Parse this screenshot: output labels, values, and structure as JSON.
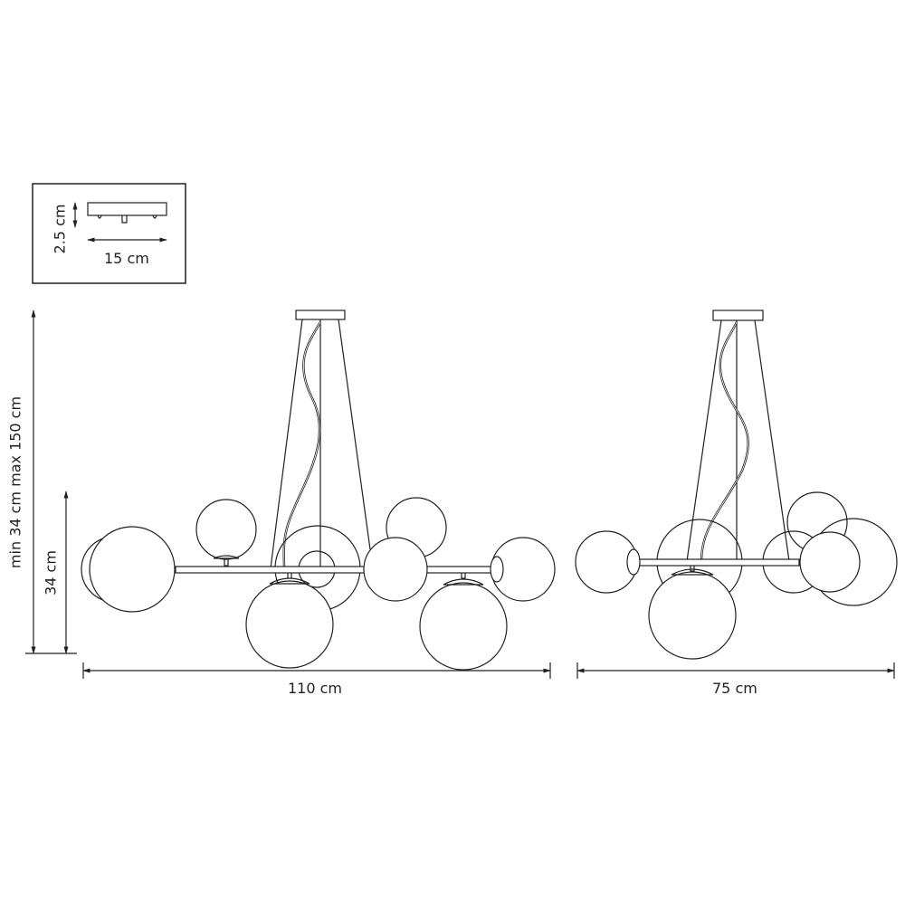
{
  "canopy_inset": {
    "height_label": "2.5 cm",
    "width_label": "15 cm"
  },
  "dimensions": {
    "height_range_label": "min 34 cm max 150 cm",
    "body_height_label": "34 cm",
    "front_width_label": "110 cm",
    "side_width_label": "75 cm"
  },
  "colors": {
    "line": "#231f20",
    "background": "#ffffff"
  }
}
